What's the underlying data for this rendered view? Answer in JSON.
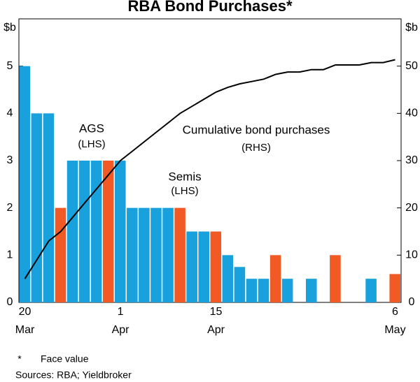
{
  "chart_data": {
    "type": "bar",
    "title": "RBA Bond Purchases*",
    "y_unit": "$b",
    "y2_unit": "$b",
    "categories": [
      "20",
      null,
      null,
      null,
      null,
      null,
      null,
      null,
      "1",
      null,
      null,
      null,
      null,
      null,
      null,
      null,
      "15",
      null,
      null,
      null,
      null,
      null,
      null,
      null,
      null,
      null,
      null,
      null,
      null,
      null,
      null,
      "6"
    ],
    "months": [
      "Mar",
      null,
      null,
      null,
      null,
      null,
      null,
      null,
      "Apr",
      null,
      null,
      null,
      null,
      null,
      null,
      null,
      "Apr",
      null,
      null,
      null,
      null,
      null,
      null,
      null,
      null,
      null,
      null,
      null,
      null,
      null,
      null,
      "May"
    ],
    "series": [
      {
        "name": "AGS",
        "color": "#19a1dd",
        "values": [
          5,
          4,
          4,
          null,
          3,
          3,
          3,
          null,
          3,
          2,
          2,
          2,
          2,
          null,
          1.5,
          1.5,
          null,
          1,
          0.75,
          0.5,
          0.5,
          null,
          0.5,
          null,
          0.5,
          null,
          null,
          null,
          null,
          0.5,
          null,
          null
        ]
      },
      {
        "name": "Semis",
        "color": "#f15a24",
        "values": [
          null,
          null,
          null,
          2,
          null,
          null,
          null,
          3,
          null,
          null,
          null,
          null,
          null,
          2,
          null,
          null,
          1.5,
          null,
          null,
          null,
          null,
          1,
          null,
          null,
          null,
          null,
          1,
          null,
          null,
          null,
          null,
          0.6
        ]
      },
      {
        "name": "Cumulative bond purchases",
        "type": "line",
        "axis": "y2",
        "color": "#000000",
        "values": [
          5,
          9,
          13,
          15,
          18,
          21,
          24,
          27,
          30,
          32,
          34,
          36,
          38,
          40,
          41.5,
          43,
          44.5,
          45.5,
          46.25,
          46.75,
          47.25,
          48.25,
          48.75,
          48.75,
          49.25,
          49.25,
          50.25,
          50.25,
          50.25,
          50.75,
          50.75,
          51.35
        ]
      }
    ],
    "annotations": [
      {
        "text": "AGS",
        "series": 0
      },
      {
        "text": "(LHS)",
        "series": 0
      },
      {
        "text": "Cumulative bond purchases",
        "series": 2
      },
      {
        "text": "(RHS)",
        "series": 2
      },
      {
        "text": "Semis",
        "series": 1
      },
      {
        "text": "(LHS)",
        "series": 1
      }
    ],
    "ylim": [
      0,
      6
    ],
    "yticks": [
      0,
      1,
      2,
      3,
      4,
      5
    ],
    "y2lim": [
      0,
      60
    ],
    "y2ticks": [
      0,
      10,
      20,
      30,
      40,
      50
    ],
    "footnote_marker": "*",
    "footnote": "Face value",
    "sources": "Sources: RBA; Yieldbroker"
  }
}
